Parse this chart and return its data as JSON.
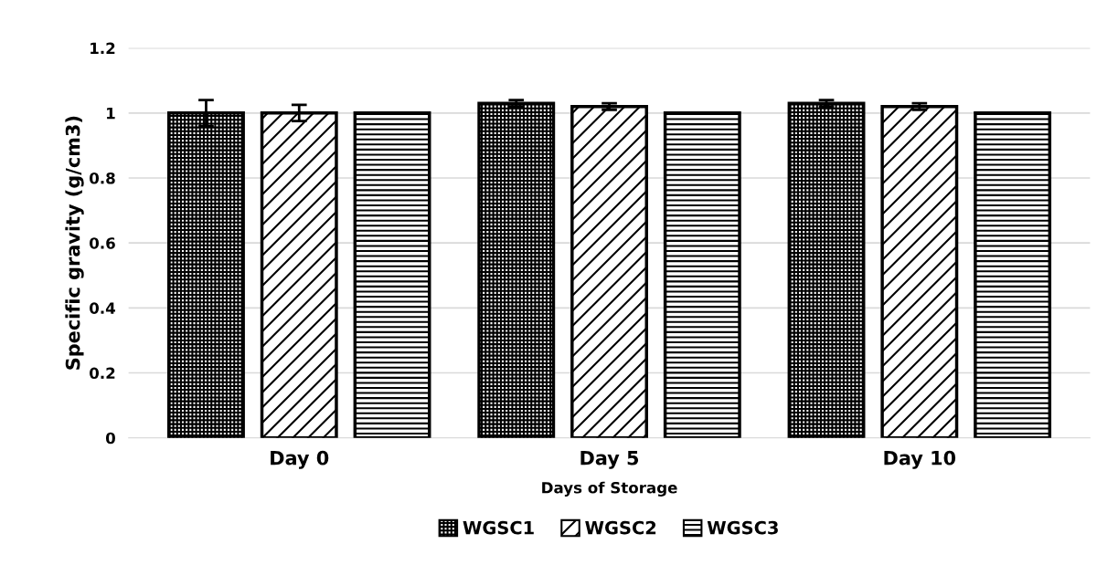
{
  "chart_data": {
    "type": "bar",
    "xlabel": "Days of Storage",
    "ylabel": "Specific gravity (g/cm3)",
    "categories": [
      "Day 0",
      "Day 5",
      "Day 10"
    ],
    "series": [
      {
        "name": "WGSC1",
        "color": "#000000",
        "values": [
          1.0,
          1.03,
          1.03
        ],
        "errors": [
          0.04,
          0.01,
          0.01
        ]
      },
      {
        "name": "WGSC2",
        "color": "#000000",
        "values": [
          1.0,
          1.02,
          1.02
        ],
        "errors": [
          0.025,
          0.01,
          0.01
        ]
      },
      {
        "name": "WGSC3",
        "color": "#000000",
        "values": [
          1.0,
          1.0,
          1.0
        ],
        "errors": [
          0,
          0,
          0
        ]
      }
    ],
    "ylim": [
      0,
      1.2
    ],
    "yticks": [
      0,
      0.2,
      0.4,
      0.6,
      0.8,
      1,
      1.2
    ],
    "grid": "y",
    "legend": "bottom"
  }
}
